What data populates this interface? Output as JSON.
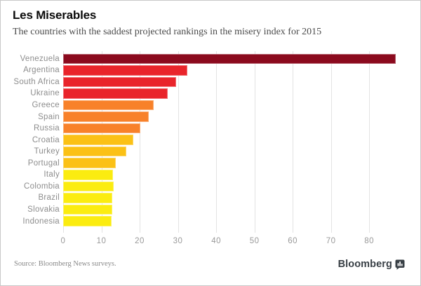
{
  "header": {
    "title": "Les Miserables",
    "subtitle": "The countries with the saddest projected rankings in the misery index for 2015"
  },
  "chart_data": {
    "type": "bar",
    "orientation": "horizontal",
    "title": "Les Miserables",
    "subtitle": "The countries with the saddest projected rankings in the misery index for 2015",
    "categories": [
      "Venezuela",
      "Argentina",
      "South Africa",
      "Ukraine",
      "Greece",
      "Spain",
      "Russia",
      "Croatia",
      "Turkey",
      "Portugal",
      "Italy",
      "Colombia",
      "Brazil",
      "Slovakia",
      "Indonesia"
    ],
    "values": [
      87.0,
      32.5,
      29.5,
      27.3,
      23.7,
      22.4,
      20.2,
      18.4,
      16.5,
      13.8,
      13.1,
      13.2,
      12.8,
      12.9,
      12.7
    ],
    "bar_colors": [
      "#8B0A1E",
      "#E9242B",
      "#E9242B",
      "#E9242B",
      "#F8812A",
      "#F8812A",
      "#F8812A",
      "#FBC116",
      "#FBC116",
      "#FBC116",
      "#FBEC10",
      "#FBEC10",
      "#FBEC10",
      "#FBEC10",
      "#FBEC10"
    ],
    "x_ticks": [
      0,
      10,
      20,
      30,
      40,
      50,
      60,
      70,
      80
    ],
    "xlim": [
      0,
      87.3
    ],
    "xlabel": "",
    "ylabel": "",
    "grid": "vertical",
    "legend": "none"
  },
  "footer": {
    "source": "Source: Bloomberg News surveys.",
    "brand": "Bloomberg"
  },
  "colors": {
    "background": "#FFFFFF",
    "border": "#C8C8C8",
    "title": "#0A0A0A",
    "subtitle": "#4A4A4A",
    "grid": "#E3E3E3",
    "label": "#8D8D8D",
    "tick": "#999999",
    "source": "#8A8A8A",
    "brand": "#383F45"
  }
}
